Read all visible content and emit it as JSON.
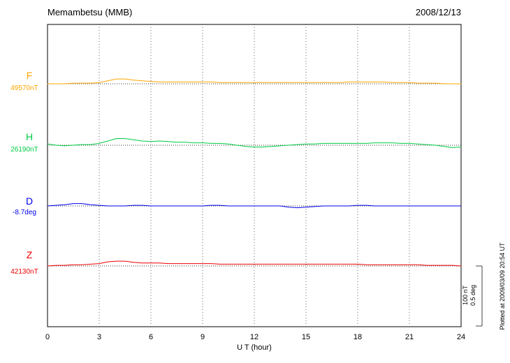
{
  "header": {
    "title": "Memambetsu (MMB)",
    "date": "2008/12/13"
  },
  "xaxis": {
    "label": "U T (hour)",
    "tick_values": [
      0,
      3,
      6,
      9,
      12,
      15,
      18,
      21,
      24
    ]
  },
  "scalebar": {
    "line1": "100 nT",
    "line2": "0.5 deg"
  },
  "plotted_at": "Plotted at 2009/03/09 20:54 UT",
  "colors": {
    "frame": "#000000",
    "gridline": "#666666",
    "baseline": "#333333",
    "scalebar": "#444444"
  },
  "chart_data": {
    "type": "line",
    "title": "Memambetsu (MMB) geomagnetic field variations, 2008/12/13",
    "xlabel": "U T (hour)",
    "x_start": 0,
    "x_end": 24,
    "x_step": 0.5,
    "gridline_hours": [
      3,
      6,
      9,
      12,
      15,
      18,
      21
    ],
    "grid_style": "dotted vertical lines every 3 hours; dotted horizontal baseline per trace",
    "scale_bar": {
      "nT": 100,
      "deg": 0.5
    },
    "legend_position": "left margin, one colored label per trace",
    "series": [
      {
        "name": "F",
        "reference_label": "49570nT",
        "reference_value": 49570,
        "unit": "nT",
        "color": "#FFA500",
        "deviations": [
          0,
          0,
          0,
          1,
          1,
          1,
          2,
          5,
          8,
          8,
          6,
          5,
          4,
          3,
          3,
          3,
          3,
          3,
          3,
          3,
          2,
          2,
          2,
          2,
          2,
          2,
          2,
          2,
          2,
          2,
          2,
          2,
          2,
          2,
          2,
          3,
          3,
          3,
          3,
          3,
          2,
          2,
          2,
          1,
          1,
          1,
          0,
          0,
          0
        ]
      },
      {
        "name": "H",
        "reference_label": "26190nT",
        "reference_value": 26190,
        "unit": "nT",
        "color": "#00CC44",
        "deviations": [
          2,
          0,
          -1,
          0,
          1,
          1,
          3,
          7,
          11,
          11,
          9,
          7,
          6,
          7,
          6,
          5,
          5,
          4,
          4,
          3,
          3,
          2,
          0,
          -2,
          -3,
          -3,
          -2,
          -1,
          0,
          1,
          2,
          2,
          3,
          3,
          3,
          3,
          3,
          3,
          4,
          4,
          4,
          3,
          3,
          2,
          1,
          0,
          -2,
          -4,
          -3
        ]
      },
      {
        "name": "D",
        "reference_label": "-8.7deg",
        "reference_value": -8.7,
        "unit": "deg",
        "color": "#0000EE",
        "deviations": [
          0,
          0.005,
          0.01,
          0.02,
          0.02,
          0.01,
          0.005,
          0,
          0,
          0,
          0.005,
          0.005,
          0,
          0,
          0,
          0,
          0,
          0,
          0,
          0.005,
          0.005,
          0,
          0,
          0,
          0,
          0,
          0,
          0,
          -0.01,
          -0.015,
          -0.01,
          -0.005,
          0,
          0,
          0,
          0,
          0.005,
          0.005,
          0,
          0,
          0,
          0,
          0,
          0,
          0,
          0,
          0,
          0,
          0
        ]
      },
      {
        "name": "Z",
        "reference_label": "42130nT",
        "reference_value": 42130,
        "unit": "nT",
        "color": "#EE0000",
        "deviations": [
          0,
          1,
          1,
          2,
          2,
          3,
          4,
          7,
          8,
          8,
          6,
          5,
          5,
          5,
          4,
          4,
          4,
          4,
          4,
          4,
          3,
          3,
          3,
          3,
          3,
          3,
          3,
          3,
          3,
          3,
          3,
          3,
          3,
          3,
          3,
          3,
          3,
          2,
          2,
          2,
          2,
          2,
          2,
          2,
          1,
          1,
          1,
          1,
          0
        ]
      }
    ]
  }
}
